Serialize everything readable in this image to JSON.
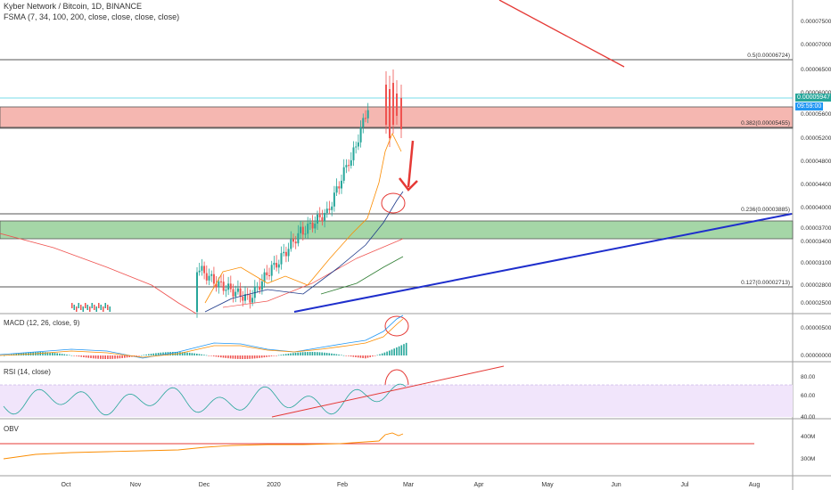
{
  "header": {
    "symbol_line": "Kyber Network / Bitcoin, 1D, BINANCE",
    "indicator_line": "FSMA (7, 34, 100, 200, close, close, close, close)"
  },
  "price_axis": {
    "ticks": [
      "0.00007500",
      "0.00007000",
      "0.00006500",
      "0.00006000",
      "0.00005600",
      "0.00005200",
      "0.00004800",
      "0.00004400",
      "0.00004000",
      "0.00003700",
      "0.00003400",
      "0.00003100",
      "0.00002800",
      "0.00002500"
    ],
    "last_price": "0.00005947",
    "countdown": "09:59:00",
    "last_price_color": "#26a69a",
    "countdown_color": "#2196f3"
  },
  "fib_levels": [
    {
      "label": "0.5(0.00006724)"
    },
    {
      "label": "0.382(0.00005455)"
    },
    {
      "label": "0.236(0.00003885)"
    },
    {
      "label": "0.127(0.00002713)"
    }
  ],
  "panes": {
    "macd": {
      "title": "MACD (12, 26, close, 9)",
      "ticks": [
        "0.00000500",
        "0.00000000"
      ]
    },
    "rsi": {
      "title": "RSI (14, close)",
      "ticks": [
        "80.00",
        "60.00",
        "40.00"
      ]
    },
    "obv": {
      "title": "OBV",
      "ticks": [
        "400M",
        "300M"
      ]
    }
  },
  "time_axis": {
    "labels": [
      "Oct",
      "Nov",
      "Dec",
      "2020",
      "Feb",
      "Mar",
      "Apr",
      "May",
      "Jun",
      "Jul",
      "Aug"
    ]
  },
  "colors": {
    "bull": "#26a69a",
    "bear": "#ef5350",
    "support_zone": "#a5d6a7",
    "resistance_zone": "#f5b7b1",
    "trendline_blue": "#1e2ecc",
    "annotation_red": "#e53935",
    "rsi_band": "#f1e5fb"
  }
}
